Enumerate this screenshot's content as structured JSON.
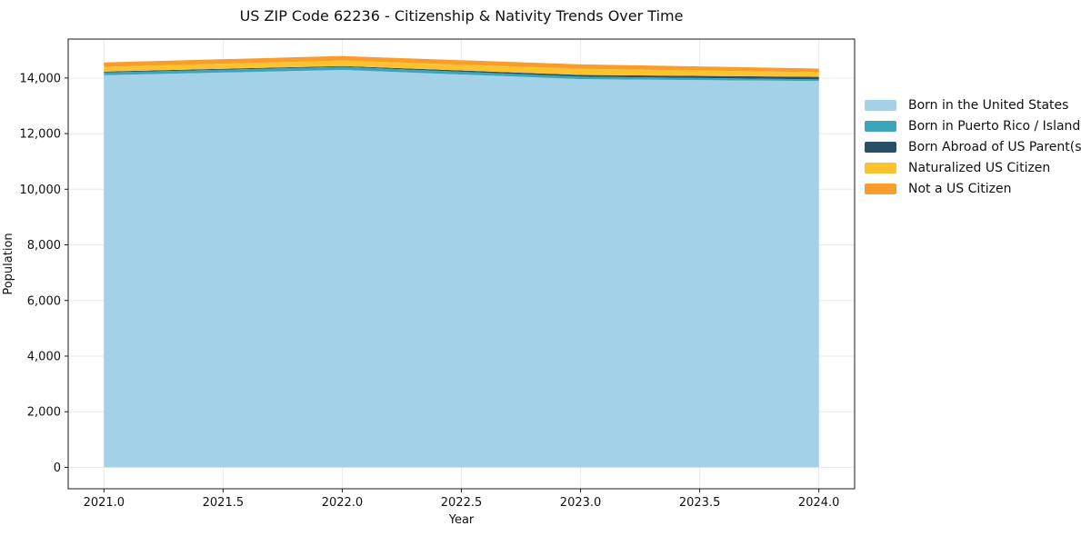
{
  "chart_data": {
    "type": "area",
    "stacked": true,
    "title": "US ZIP Code 62236 - Citizenship & Nativity Trends Over Time",
    "xlabel": "Year",
    "ylabel": "Population",
    "x": [
      2021,
      2022,
      2023,
      2024
    ],
    "series": [
      {
        "name": "Born in the United States",
        "color": "#a3d2e8",
        "values": [
          14100,
          14290,
          13960,
          13890
        ]
      },
      {
        "name": "Born in Puerto Rico / Islands",
        "color": "#3ba6bb",
        "values": [
          100,
          110,
          90,
          60
        ]
      },
      {
        "name": "Born Abroad of US Parent(s)",
        "color": "#274f66",
        "values": [
          30,
          30,
          60,
          90
        ]
      },
      {
        "name": "Naturalized US Citizen",
        "color": "#fcc32d",
        "values": [
          170,
          200,
          220,
          170
        ]
      },
      {
        "name": "Not a US Citizen",
        "color": "#f79c2d",
        "values": [
          160,
          160,
          160,
          130
        ]
      }
    ],
    "xticks": [
      2021.0,
      2021.5,
      2022.0,
      2022.5,
      2023.0,
      2023.5,
      2024.0
    ],
    "xtick_labels": [
      "2021.0",
      "2021.5",
      "2022.0",
      "2022.5",
      "2023.0",
      "2023.5",
      "2024.0"
    ],
    "yticks": [
      0,
      2000,
      4000,
      6000,
      8000,
      10000,
      12000,
      14000
    ],
    "ytick_labels": [
      "0",
      "2,000",
      "4,000",
      "6,000",
      "8,000",
      "10,000",
      "12,000",
      "14,000"
    ],
    "xlim": [
      2020.85,
      2024.15
    ],
    "ylim": [
      -770,
      15400
    ],
    "grid": true,
    "legend_position": "right",
    "colors": {
      "grid": "#eaeaea",
      "spine": "#1a1a1a",
      "text": "#111111",
      "background": "#ffffff"
    }
  }
}
